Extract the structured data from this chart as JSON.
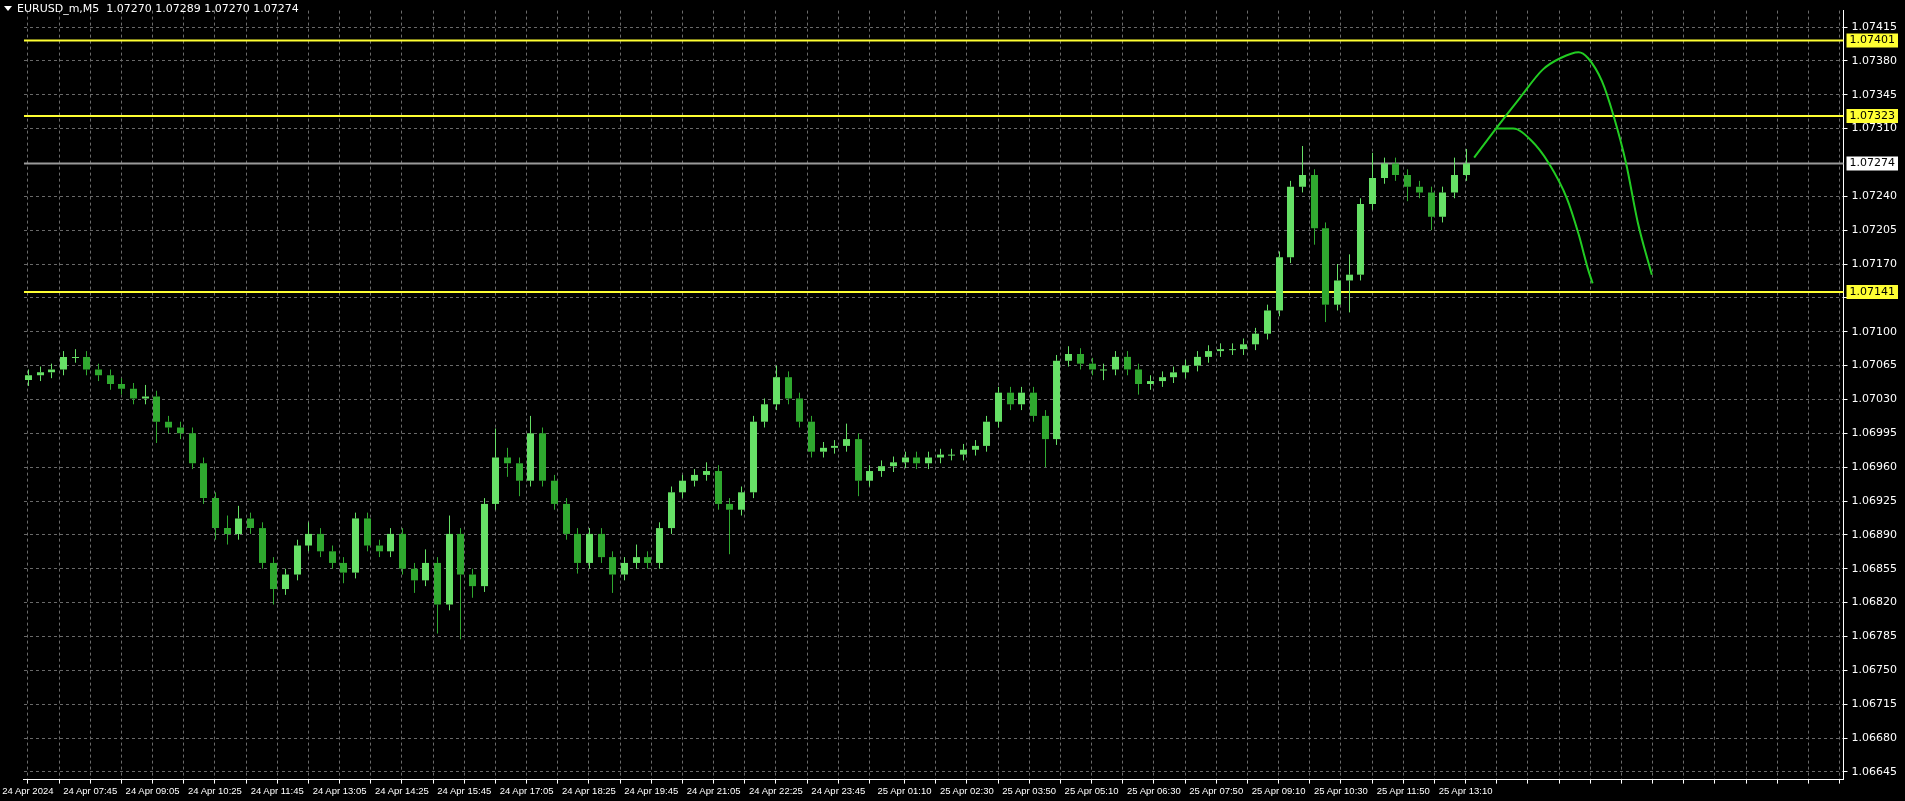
{
  "chart_data": {
    "type": "candlestick",
    "title": "EURUSD_m,M5  1.07270 1.07289 1.07270 1.07274",
    "colors": [
      "#66e066",
      "#66e066",
      "#66e066",
      "#66e066",
      "#66e066",
      "#2fa82f",
      "#2fa82f",
      "#2fa82f",
      "#2fa82f",
      "#2fa82f",
      "#66e066",
      "#2fa82f",
      "#2fa82f",
      "#2fa82f",
      "#2fa82f",
      "#2fa82f",
      "#2fa82f",
      "#2fa82f",
      "#66e066",
      "#2fa82f",
      "#2fa82f",
      "#2fa82f",
      "#66e066",
      "#66e066",
      "#66e066",
      "#2fa82f",
      "#2fa82f",
      "#2fa82f",
      "#66e066",
      "#2fa82f",
      "#2fa82f",
      "#66e066",
      "#2fa82f",
      "#2fa82f",
      "#66e066",
      "#2fa82f",
      "#66e066",
      "#2fa82f",
      "#2fa82f",
      "#66e066",
      "#66e066",
      "#2fa82f",
      "#2fa82f",
      "#66e066",
      "#2fa82f",
      "#2fa82f",
      "#2fa82f",
      "#2fa82f",
      "#66e066",
      "#2fa82f",
      "#2fa82f",
      "#66e066",
      "#66e066",
      "#2fa82f",
      "#66e066",
      "#66e066",
      "#66e066",
      "#66e066",
      "#66e066",
      "#2fa82f",
      "#2fa82f",
      "#66e066",
      "#66e066",
      "#66e066",
      "#66e066",
      "#2fa82f",
      "#2fa82f",
      "#2fa82f",
      "#66e066",
      "#66e066",
      "#66e066",
      "#2fa82f",
      "#66e066",
      "#66e066",
      "#66e066",
      "#66e066",
      "#2fa82f",
      "#66e066",
      "#66e066",
      "#66e066",
      "#66e066",
      "#66e066",
      "#66e066",
      "#66e066",
      "#2fa82f",
      "#66e066",
      "#2fa82f",
      "#2fa82f",
      "#66e066",
      "#66e066",
      "#2fa82f",
      "#2fa82f",
      "#66e066",
      "#66e066",
      "#2fa82f",
      "#2fa82f",
      "#66e066",
      "#66e066",
      "#66e066",
      "#66e066",
      "#66e066",
      "#66e066",
      "#66e066",
      "#66e066",
      "#66e066",
      "#66e066",
      "#66e066",
      "#66e066",
      "#66e066",
      "#66e066",
      "#2fa82f",
      "#2fa82f",
      "#66e066",
      "#66e066",
      "#66e066",
      "#66e066",
      "#66e066",
      "#2fa82f",
      "#2fa82f",
      "#2fa82f",
      "#2fa82f",
      "#66e066",
      "#66e066",
      "#66e066"
    ],
    "x": [
      "2024-04-24T06:25",
      "2024-04-24T06:40",
      "2024-04-24T06:55",
      "2024-04-24T07:10",
      "2024-04-24T07:25",
      "2024-04-24T07:40",
      "2024-04-24T07:55",
      "2024-04-24T08:10",
      "2024-04-24T08:25",
      "2024-04-24T08:40",
      "2024-04-24T08:55",
      "2024-04-24T09:10",
      "2024-04-24T09:25",
      "2024-04-24T09:40",
      "2024-04-24T09:55",
      "2024-04-24T10:10",
      "2024-04-24T10:25",
      "2024-04-24T10:40",
      "2024-04-24T10:55",
      "2024-04-24T11:10",
      "2024-04-24T11:25",
      "2024-04-24T11:40",
      "2024-04-24T11:55",
      "2024-04-24T12:10",
      "2024-04-24T12:25",
      "2024-04-24T12:40",
      "2024-04-24T12:55",
      "2024-04-24T13:10",
      "2024-04-24T13:25",
      "2024-04-24T13:40",
      "2024-04-24T13:55",
      "2024-04-24T14:10",
      "2024-04-24T14:25",
      "2024-04-24T14:40",
      "2024-04-24T14:55",
      "2024-04-24T15:10",
      "2024-04-24T15:25",
      "2024-04-24T15:40",
      "2024-04-24T15:55",
      "2024-04-24T16:10",
      "2024-04-24T16:25",
      "2024-04-24T16:40",
      "2024-04-24T16:55",
      "2024-04-24T17:10",
      "2024-04-24T17:25",
      "2024-04-24T17:40",
      "2024-04-24T17:55",
      "2024-04-24T18:10",
      "2024-04-24T18:25",
      "2024-04-24T18:40",
      "2024-04-24T18:55",
      "2024-04-24T19:10",
      "2024-04-24T19:25",
      "2024-04-24T19:40",
      "2024-04-24T19:55",
      "2024-04-24T20:10",
      "2024-04-24T20:25",
      "2024-04-24T20:40",
      "2024-04-24T20:55",
      "2024-04-24T21:10",
      "2024-04-24T21:25",
      "2024-04-24T21:40",
      "2024-04-24T21:55",
      "2024-04-24T22:10",
      "2024-04-24T22:25",
      "2024-04-24T22:40",
      "2024-04-24T22:55",
      "2024-04-24T23:10",
      "2024-04-24T23:25",
      "2024-04-24T23:40",
      "2024-04-24T23:55",
      "2024-04-25T00:10",
      "2024-04-25T00:25",
      "2024-04-25T00:40",
      "2024-04-25T00:55",
      "2024-04-25T01:10",
      "2024-04-25T01:25",
      "2024-04-25T01:40",
      "2024-04-25T01:55",
      "2024-04-25T02:10",
      "2024-04-25T02:25",
      "2024-04-25T02:40",
      "2024-04-25T02:55",
      "2024-04-25T03:10",
      "2024-04-25T03:25",
      "2024-04-25T03:40",
      "2024-04-25T03:55",
      "2024-04-25T04:10",
      "2024-04-25T04:25",
      "2024-04-25T04:40",
      "2024-04-25T04:55",
      "2024-04-25T05:10",
      "2024-04-25T05:25",
      "2024-04-25T05:40",
      "2024-04-25T05:55",
      "2024-04-25T06:10",
      "2024-04-25T06:25",
      "2024-04-25T06:40",
      "2024-04-25T06:55",
      "2024-04-25T07:10",
      "2024-04-25T07:25",
      "2024-04-25T07:40",
      "2024-04-25T07:55",
      "2024-04-25T08:10",
      "2024-04-25T08:25",
      "2024-04-25T08:40",
      "2024-04-25T08:55",
      "2024-04-25T09:10",
      "2024-04-25T09:25",
      "2024-04-25T09:40",
      "2024-04-25T09:55",
      "2024-04-25T10:10",
      "2024-04-25T10:25",
      "2024-04-25T10:40",
      "2024-04-25T10:55",
      "2024-04-25T11:10",
      "2024-04-25T11:25",
      "2024-04-25T11:40",
      "2024-04-25T11:55",
      "2024-04-25T12:10",
      "2024-04-25T12:25",
      "2024-04-25T12:40",
      "2024-04-25T12:55",
      "2024-04-25T13:10"
    ],
    "ohlc": [
      [
        1.0705,
        1.07061,
        1.07044,
        1.07055
      ],
      [
        1.07055,
        1.07064,
        1.07049,
        1.07058
      ],
      [
        1.07058,
        1.07067,
        1.07052,
        1.07061
      ],
      [
        1.07061,
        1.0708,
        1.07055,
        1.07074
      ],
      [
        1.07074,
        1.07082,
        1.07068,
        1.07074
      ],
      [
        1.07074,
        1.0708,
        1.07055,
        1.07061
      ],
      [
        1.07061,
        1.07067,
        1.07049,
        1.07055
      ],
      [
        1.07055,
        1.07061,
        1.0704,
        1.07046
      ],
      [
        1.07046,
        1.07052,
        1.07035,
        1.07041
      ],
      [
        1.07041,
        1.07047,
        1.07025,
        1.07031
      ],
      [
        1.07031,
        1.07045,
        1.07025,
        1.07033
      ],
      [
        1.07033,
        1.07039,
        1.06985,
        1.07007
      ],
      [
        1.07007,
        1.07013,
        1.06995,
        1.07001
      ],
      [
        1.07001,
        1.07007,
        1.06989,
        1.06995
      ],
      [
        1.06995,
        1.07001,
        1.06958,
        1.06964
      ],
      [
        1.06964,
        1.0697,
        1.06922,
        1.06928
      ],
      [
        1.06928,
        1.06934,
        1.06885,
        1.06897
      ],
      [
        1.06897,
        1.0691,
        1.0688,
        1.06891
      ],
      [
        1.06891,
        1.0692,
        1.06885,
        1.06907
      ],
      [
        1.06907,
        1.06913,
        1.06891,
        1.06897
      ],
      [
        1.06897,
        1.06903,
        1.06855,
        1.06861
      ],
      [
        1.06861,
        1.06867,
        1.06818,
        1.06834
      ],
      [
        1.06834,
        1.06855,
        1.06828,
        1.06849
      ],
      [
        1.06849,
        1.06885,
        1.06843,
        1.06879
      ],
      [
        1.06879,
        1.06903,
        1.06873,
        1.06891
      ],
      [
        1.06891,
        1.06897,
        1.06867,
        1.06873
      ],
      [
        1.06873,
        1.06879,
        1.06855,
        1.06861
      ],
      [
        1.06861,
        1.06867,
        1.0684,
        1.06851
      ],
      [
        1.06851,
        1.06913,
        1.06845,
        1.06907
      ],
      [
        1.06907,
        1.06913,
        1.06873,
        1.06879
      ],
      [
        1.06879,
        1.06885,
        1.06867,
        1.06873
      ],
      [
        1.06873,
        1.06897,
        1.06867,
        1.06891
      ],
      [
        1.06891,
        1.06897,
        1.06849,
        1.06855
      ],
      [
        1.06855,
        1.06861,
        1.0683,
        1.06843
      ],
      [
        1.06843,
        1.06875,
        1.06837,
        1.06861
      ],
      [
        1.06861,
        1.06867,
        1.06788,
        1.06818
      ],
      [
        1.06818,
        1.0691,
        1.06812,
        1.06891
      ],
      [
        1.06891,
        1.06897,
        1.06782,
        1.06849
      ],
      [
        1.06849,
        1.06855,
        1.06825,
        1.06837
      ],
      [
        1.06837,
        1.06928,
        1.06831,
        1.06922
      ],
      [
        1.06922,
        1.07,
        1.06916,
        1.0697
      ],
      [
        1.0697,
        1.0698,
        1.0695,
        1.06964
      ],
      [
        1.06964,
        1.0697,
        1.0693,
        1.06946
      ],
      [
        1.06946,
        1.07013,
        1.0694,
        1.06995
      ],
      [
        1.06995,
        1.07001,
        1.0694,
        1.06946
      ],
      [
        1.06946,
        1.06952,
        1.06916,
        1.06922
      ],
      [
        1.06922,
        1.06928,
        1.06885,
        1.06891
      ],
      [
        1.06891,
        1.06897,
        1.0685,
        1.06861
      ],
      [
        1.06861,
        1.06897,
        1.06855,
        1.06891
      ],
      [
        1.06891,
        1.06897,
        1.06861,
        1.06867
      ],
      [
        1.06867,
        1.06873,
        1.0683,
        1.06849
      ],
      [
        1.06849,
        1.06867,
        1.06843,
        1.06861
      ],
      [
        1.06861,
        1.0688,
        1.06855,
        1.06867
      ],
      [
        1.06867,
        1.06873,
        1.06855,
        1.06861
      ],
      [
        1.06861,
        1.06903,
        1.06855,
        1.06897
      ],
      [
        1.06897,
        1.0694,
        1.06891,
        1.06934
      ],
      [
        1.06934,
        1.06952,
        1.06928,
        1.06946
      ],
      [
        1.06946,
        1.06958,
        1.0694,
        1.06952
      ],
      [
        1.06952,
        1.06965,
        1.06946,
        1.06956
      ],
      [
        1.06956,
        1.06962,
        1.06916,
        1.06922
      ],
      [
        1.06922,
        1.06928,
        1.0687,
        1.06916
      ],
      [
        1.06916,
        1.0694,
        1.0691,
        1.06934
      ],
      [
        1.06934,
        1.07013,
        1.06928,
        1.07007
      ],
      [
        1.07007,
        1.07031,
        1.07001,
        1.07025
      ],
      [
        1.07025,
        1.07065,
        1.07019,
        1.07053
      ],
      [
        1.07053,
        1.07059,
        1.07025,
        1.07031
      ],
      [
        1.07031,
        1.07037,
        1.07001,
        1.07007
      ],
      [
        1.07007,
        1.07013,
        1.0697,
        1.06976
      ],
      [
        1.06976,
        1.06986,
        1.0697,
        1.0698
      ],
      [
        1.0698,
        1.06988,
        1.06974,
        1.06982
      ],
      [
        1.06982,
        1.07005,
        1.06976,
        1.06989
      ],
      [
        1.06989,
        1.06995,
        1.0693,
        1.06946
      ],
      [
        1.06946,
        1.06962,
        1.0694,
        1.06956
      ],
      [
        1.06956,
        1.06967,
        1.0695,
        1.06961
      ],
      [
        1.06961,
        1.06971,
        1.06955,
        1.06965
      ],
      [
        1.06965,
        1.06976,
        1.06959,
        1.0697
      ],
      [
        1.0697,
        1.06976,
        1.06958,
        1.06964
      ],
      [
        1.06964,
        1.06976,
        1.06958,
        1.0697
      ],
      [
        1.0697,
        1.06979,
        1.06964,
        1.06973
      ],
      [
        1.06973,
        1.06979,
        1.06967,
        1.06973
      ],
      [
        1.06973,
        1.06984,
        1.06967,
        1.06978
      ],
      [
        1.06978,
        1.06988,
        1.06972,
        1.06982
      ],
      [
        1.06982,
        1.07013,
        1.06976,
        1.07007
      ],
      [
        1.07007,
        1.07043,
        1.07001,
        1.07037
      ],
      [
        1.07037,
        1.07043,
        1.07019,
        1.07025
      ],
      [
        1.07025,
        1.07043,
        1.07019,
        1.07037
      ],
      [
        1.07037,
        1.07043,
        1.07007,
        1.07013
      ],
      [
        1.07013,
        1.07019,
        1.0696,
        1.06989
      ],
      [
        1.06989,
        1.07076,
        1.06983,
        1.0707
      ],
      [
        1.0707,
        1.07085,
        1.07064,
        1.07077
      ],
      [
        1.07077,
        1.07083,
        1.07061,
        1.07067
      ],
      [
        1.07067,
        1.07073,
        1.07055,
        1.07061
      ],
      [
        1.07061,
        1.07067,
        1.0705,
        1.07061
      ],
      [
        1.07061,
        1.0708,
        1.07055,
        1.07074
      ],
      [
        1.07074,
        1.0708,
        1.07055,
        1.07061
      ],
      [
        1.07061,
        1.07067,
        1.07035,
        1.07046
      ],
      [
        1.07046,
        1.07055,
        1.0704,
        1.07049
      ],
      [
        1.07049,
        1.07059,
        1.07043,
        1.07053
      ],
      [
        1.07053,
        1.07064,
        1.07047,
        1.07058
      ],
      [
        1.07058,
        1.07071,
        1.07052,
        1.07065
      ],
      [
        1.07065,
        1.0708,
        1.07059,
        1.07074
      ],
      [
        1.07074,
        1.07086,
        1.07068,
        1.0708
      ],
      [
        1.0708,
        1.07088,
        1.07074,
        1.07082
      ],
      [
        1.07082,
        1.07088,
        1.07076,
        1.07082
      ],
      [
        1.07082,
        1.07093,
        1.07076,
        1.07087
      ],
      [
        1.07087,
        1.07104,
        1.07081,
        1.07098
      ],
      [
        1.07098,
        1.07128,
        1.07092,
        1.07122
      ],
      [
        1.07122,
        1.07183,
        1.07116,
        1.07177
      ],
      [
        1.07177,
        1.07256,
        1.07171,
        1.0725
      ],
      [
        1.0725,
        1.07292,
        1.07244,
        1.07262
      ],
      [
        1.07262,
        1.07268,
        1.0719,
        1.07207
      ],
      [
        1.07207,
        1.07213,
        1.0711,
        1.07128
      ],
      [
        1.07128,
        1.0717,
        1.07122,
        1.07153
      ],
      [
        1.07153,
        1.0718,
        1.0712,
        1.07159
      ],
      [
        1.07159,
        1.07238,
        1.07153,
        1.07232
      ],
      [
        1.07232,
        1.07285,
        1.07226,
        1.07259
      ],
      [
        1.07259,
        1.0728,
        1.07253,
        1.07274
      ],
      [
        1.07274,
        1.0728,
        1.07256,
        1.07262
      ],
      [
        1.07262,
        1.07268,
        1.07235,
        1.0725
      ],
      [
        1.0725,
        1.07256,
        1.07238,
        1.07244
      ],
      [
        1.07244,
        1.0725,
        1.07205,
        1.07219
      ],
      [
        1.07219,
        1.0725,
        1.07213,
        1.07244
      ],
      [
        1.07244,
        1.0728,
        1.07238,
        1.07262
      ],
      [
        1.07262,
        1.07289,
        1.07256,
        1.07274
      ]
    ],
    "series": [
      {
        "type": "line",
        "color": "#22cc22",
        "x": [
          "2024-04-25T13:21",
          "2024-04-25T13:49",
          "2024-04-25T14:19",
          "2024-04-25T14:49",
          "2024-04-25T15:12",
          "2024-04-25T15:35",
          "2024-04-25T15:47",
          "2024-04-25T16:05",
          "2024-04-25T16:20",
          "2024-04-25T16:36",
          "2024-04-25T16:51",
          "2024-04-25T17:09"
        ],
        "values": [
          1.0728,
          1.0731,
          1.07341,
          1.07371,
          1.07383,
          1.07389,
          1.07383,
          1.07359,
          1.07323,
          1.07274,
          1.07213,
          1.07159
        ]
      },
      {
        "type": "line",
        "color": "#22cc22",
        "x": [
          "2024-04-25T13:49",
          "2024-04-25T14:11",
          "2024-04-25T14:34",
          "2024-04-25T14:57",
          "2024-04-25T15:20",
          "2024-04-25T15:35",
          "2024-04-25T15:47",
          "2024-04-25T15:53"
        ],
        "values": [
          1.0731,
          1.0731,
          1.07298,
          1.07274,
          1.07238,
          1.07201,
          1.07165,
          1.0715
        ]
      }
    ],
    "xlim": [
      "2024-04-24T06:20",
      "2024-04-25T21:15"
    ],
    "ylim": [
      1.06637,
      1.07432
    ],
    "xticks": [
      {
        "value": "2024-04-24T06:25",
        "label": "24 Apr 2024"
      },
      {
        "value": "2024-04-24T07:05",
        "label": null
      },
      {
        "value": "2024-04-24T07:45",
        "label": "24 Apr 07:45"
      },
      {
        "value": "2024-04-24T08:25",
        "label": null
      },
      {
        "value": "2024-04-24T09:05",
        "label": "24 Apr 09:05"
      },
      {
        "value": "2024-04-24T09:45",
        "label": null
      },
      {
        "value": "2024-04-24T10:25",
        "label": "24 Apr 10:25"
      },
      {
        "value": "2024-04-24T11:05",
        "label": null
      },
      {
        "value": "2024-04-24T11:45",
        "label": "24 Apr 11:45"
      },
      {
        "value": "2024-04-24T12:25",
        "label": null
      },
      {
        "value": "2024-04-24T13:05",
        "label": "24 Apr 13:05"
      },
      {
        "value": "2024-04-24T13:45",
        "label": null
      },
      {
        "value": "2024-04-24T14:25",
        "label": "24 Apr 14:25"
      },
      {
        "value": "2024-04-24T15:05",
        "label": null
      },
      {
        "value": "2024-04-24T15:45",
        "label": "24 Apr 15:45"
      },
      {
        "value": "2024-04-24T16:25",
        "label": null
      },
      {
        "value": "2024-04-24T17:05",
        "label": "24 Apr 17:05"
      },
      {
        "value": "2024-04-24T17:45",
        "label": null
      },
      {
        "value": "2024-04-24T18:25",
        "label": "24 Apr 18:25"
      },
      {
        "value": "2024-04-24T19:05",
        "label": null
      },
      {
        "value": "2024-04-24T19:45",
        "label": "24 Apr 19:45"
      },
      {
        "value": "2024-04-24T20:25",
        "label": null
      },
      {
        "value": "2024-04-24T21:05",
        "label": "24 Apr 21:05"
      },
      {
        "value": "2024-04-24T21:45",
        "label": null
      },
      {
        "value": "2024-04-24T22:25",
        "label": "24 Apr 22:25"
      },
      {
        "value": "2024-04-24T23:05",
        "label": null
      },
      {
        "value": "2024-04-24T23:45",
        "label": "24 Apr 23:45"
      },
      {
        "value": "2024-04-25T00:25",
        "label": null
      },
      {
        "value": "2024-04-25T01:10",
        "label": "25 Apr 01:10"
      },
      {
        "value": "2024-04-25T01:50",
        "label": null
      },
      {
        "value": "2024-04-25T02:30",
        "label": "25 Apr 02:30"
      },
      {
        "value": "2024-04-25T03:10",
        "label": null
      },
      {
        "value": "2024-04-25T03:50",
        "label": "25 Apr 03:50"
      },
      {
        "value": "2024-04-25T04:30",
        "label": null
      },
      {
        "value": "2024-04-25T05:10",
        "label": "25 Apr 05:10"
      },
      {
        "value": "2024-04-25T05:50",
        "label": null
      },
      {
        "value": "2024-04-25T06:30",
        "label": "25 Apr 06:30"
      },
      {
        "value": "2024-04-25T07:10",
        "label": null
      },
      {
        "value": "2024-04-25T07:50",
        "label": "25 Apr 07:50"
      },
      {
        "value": "2024-04-25T08:30",
        "label": null
      },
      {
        "value": "2024-04-25T09:10",
        "label": "25 Apr 09:10"
      },
      {
        "value": "2024-04-25T09:50",
        "label": null
      },
      {
        "value": "2024-04-25T10:30",
        "label": "25 Apr 10:30"
      },
      {
        "value": "2024-04-25T11:10",
        "label": null
      },
      {
        "value": "2024-04-25T11:50",
        "label": "25 Apr 11:50"
      },
      {
        "value": "2024-04-25T12:30",
        "label": null
      },
      {
        "value": "2024-04-25T13:10",
        "label": "25 Apr 13:10"
      },
      {
        "value": "2024-04-25T13:50",
        "label": null
      },
      {
        "value": "2024-04-25T14:30",
        "label": null
      },
      {
        "value": "2024-04-25T15:10",
        "label": null
      },
      {
        "value": "2024-04-25T15:50",
        "label": null
      },
      {
        "value": "2024-04-25T16:30",
        "label": null
      },
      {
        "value": "2024-04-25T17:10",
        "label": null
      },
      {
        "value": "2024-04-25T17:50",
        "label": null
      },
      {
        "value": "2024-04-25T18:30",
        "label": null
      },
      {
        "value": "2024-04-25T19:10",
        "label": null
      },
      {
        "value": "2024-04-25T19:50",
        "label": null
      },
      {
        "value": "2024-04-25T20:30",
        "label": null
      },
      {
        "value": "2024-04-25T21:10",
        "label": null
      }
    ],
    "yticks": [
      1.06645,
      {
        "value": 1.0668,
        "label": "1.06680"
      },
      1.06715,
      {
        "value": 1.0675,
        "label": "1.06750"
      },
      1.06785,
      {
        "value": 1.0682,
        "label": "1.06820"
      },
      1.06855,
      {
        "value": 1.0689,
        "label": "1.06890"
      },
      1.06925,
      {
        "value": 1.0696,
        "label": "1.06960"
      },
      1.06995,
      {
        "value": 1.0703,
        "label": "1.07030"
      },
      1.07065,
      {
        "value": 1.071,
        "label": "1.07100"
      },
      {
        "value": 1.07135,
        "label": null
      },
      {
        "value": 1.0717,
        "label": "1.07170"
      },
      1.07205,
      {
        "value": 1.0724,
        "label": "1.07240"
      },
      {
        "value": 1.0731,
        "label": "1.07310"
      },
      1.07345,
      {
        "value": 1.0738,
        "label": "1.07380"
      },
      1.07415
    ],
    "grid": true,
    "marker": "none",
    "ref_lines": [
      {
        "axis": "y",
        "value": 1.07401,
        "label": "1.07401",
        "color": "#ffff33"
      },
      {
        "axis": "y",
        "value": 1.07323,
        "label": "1.07323",
        "color": "#ffff33"
      },
      {
        "axis": "y",
        "value": 1.07274,
        "label": "1.07274",
        "color": "#9a9a9a"
      },
      {
        "axis": "y",
        "value": 1.07141,
        "label": "1.07141",
        "color": "#ffff33"
      }
    ]
  }
}
